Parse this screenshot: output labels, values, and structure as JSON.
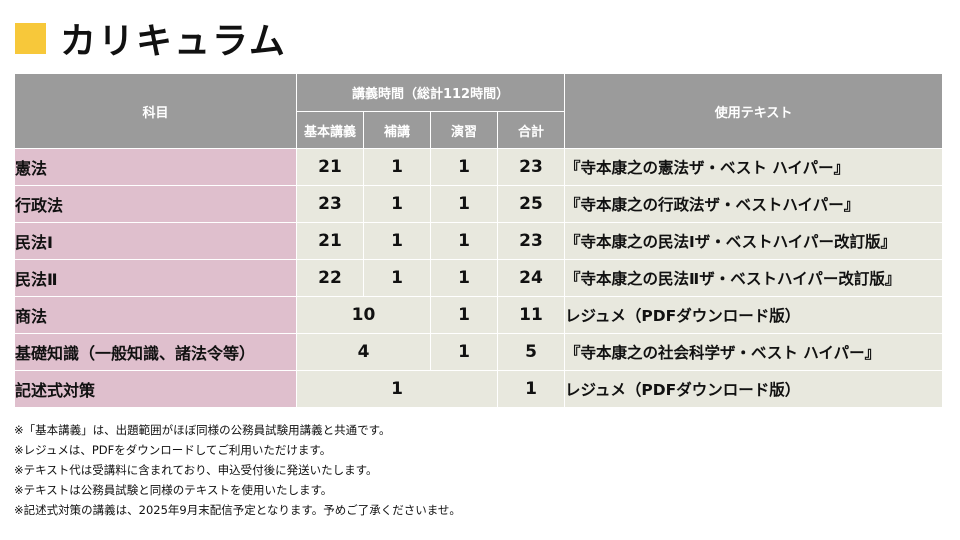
{
  "title": "カリキュラム",
  "header": {
    "subject": "科目",
    "lecture_hours": "講義時間（総計112時間）",
    "basic": "基本講義",
    "supplement": "補講",
    "exercise": "演習",
    "total": "合計",
    "textbook": "使用テキスト"
  },
  "rows": [
    {
      "subject": "憲法",
      "basic": "21",
      "supplement": "1",
      "exercise": "1",
      "total": "23",
      "text": "『寺本康之の憲法ザ・ベスト ハイパー』"
    },
    {
      "subject": "行政法",
      "basic": "23",
      "supplement": "1",
      "exercise": "1",
      "total": "25",
      "text": "『寺本康之の行政法ザ・ベストハイパー』"
    },
    {
      "subject": "民法Ⅰ",
      "basic": "21",
      "supplement": "1",
      "exercise": "1",
      "total": "23",
      "text": "『寺本康之の民法Ⅰザ・ベストハイパー改訂版』"
    },
    {
      "subject": "民法Ⅱ",
      "basic": "22",
      "supplement": "1",
      "exercise": "1",
      "total": "24",
      "text": "『寺本康之の民法Ⅱザ・ベストハイパー改訂版』"
    },
    {
      "subject": "商法",
      "basic_supplement": "10",
      "exercise": "1",
      "total": "11",
      "text": "レジュメ（PDFダウンロード版）"
    },
    {
      "subject": "基礎知識（一般知識、諸法令等）",
      "basic_supplement": "4",
      "exercise": "1",
      "total": "5",
      "text": "『寺本康之の社会科学ザ・ベスト ハイパー』"
    },
    {
      "subject": "記述式対策",
      "all_hours": "1",
      "total": "1",
      "text": "レジュメ（PDFダウンロード版）"
    }
  ],
  "notes": [
    "※「基本講義」は、出題範囲がほぼ同様の公務員試験用講義と共通です。",
    "※レジュメは、PDFをダウンロードしてご利用いただけます。",
    "※テキスト代は受講料に含まれており、申込受付後に発送いたします。",
    "※テキストは公務員試験と同様のテキストを使用いたします。",
    "※記述式対策の講義は、2025年9月末配信予定となります。予めご了承くださいませ。"
  ],
  "colors": {
    "accent": "#f7c83a",
    "header_bg": "#9b9b9b",
    "subject_bg": "#dfbfcd",
    "cell_bg": "#e8e8de"
  }
}
